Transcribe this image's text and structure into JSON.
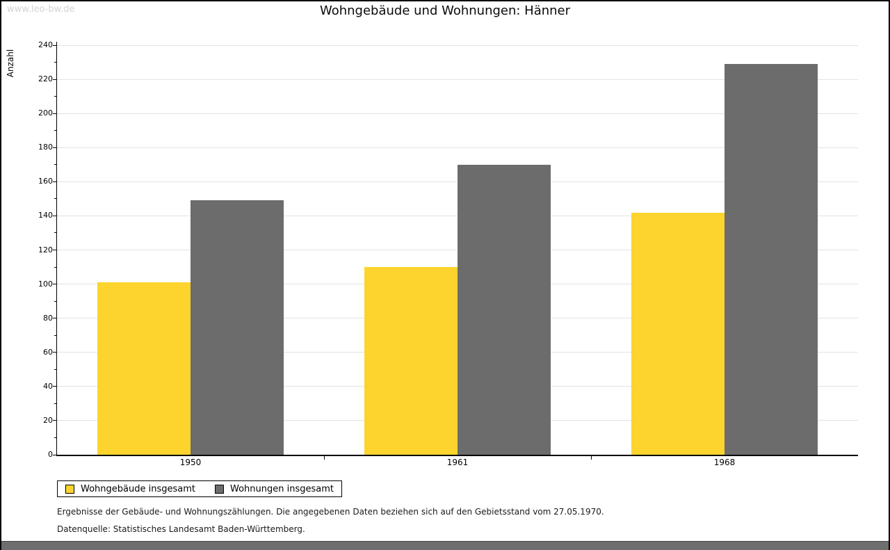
{
  "watermark": "www.leo-bw.de",
  "chart_data": {
    "type": "bar",
    "title": "Wohngebäude und Wohnungen: Hänner",
    "ylabel": "Anzahl",
    "xlabel": "",
    "categories": [
      "1950",
      "1961",
      "1968"
    ],
    "series": [
      {
        "name": "Wohngebäude insgesamt",
        "color": "#FCD42D",
        "values": [
          101,
          110,
          142
        ]
      },
      {
        "name": "Wohnungen insgesamt",
        "color": "#6C6C6C",
        "values": [
          149,
          170,
          229
        ]
      }
    ],
    "ylim": [
      0,
      240
    ],
    "ytick_major": 20,
    "ytick_minor": 10,
    "yticks": [
      0,
      20,
      40,
      60,
      80,
      100,
      120,
      140,
      160,
      180,
      200,
      220,
      240
    ],
    "grid": true,
    "legend_position": "bottom-left"
  },
  "footnotes": {
    "line1": "Ergebnisse der Gebäude- und Wohnungszählungen. Die angegebenen Daten beziehen sich auf den Gebietsstand vom 27.05.1970.",
    "line2": "Datenquelle: Statistisches Landesamt Baden-Württemberg."
  },
  "colors": {
    "bar_yellow": "#FCD42D",
    "bar_gray": "#6C6C6C",
    "gridline": "#e2e2e2",
    "axis": "#000000",
    "watermark": "#d3d3d3",
    "footer_bar": "#6e6e6e"
  }
}
